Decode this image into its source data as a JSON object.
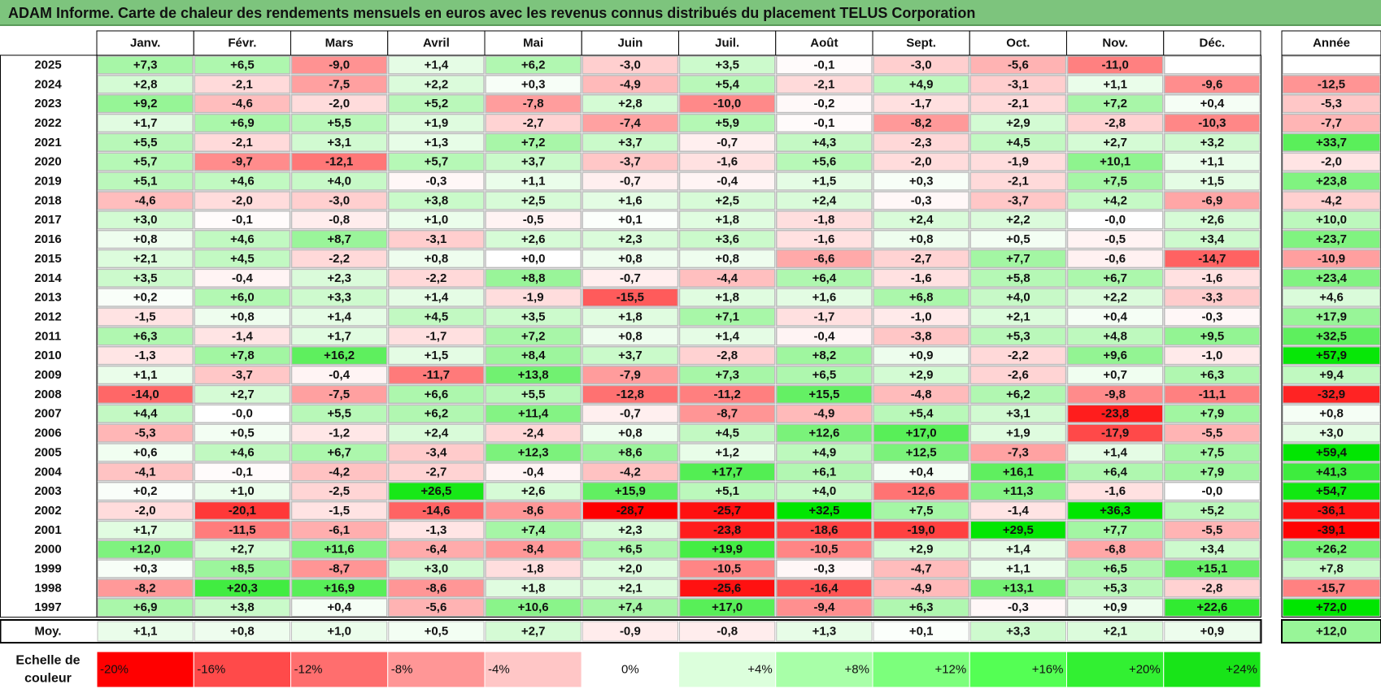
{
  "title": "ADAM Informe. Carte de chaleur des rendements mensuels en euros avec les revenus connus distribués du placement TELUS Corporation",
  "chart_data": {
    "type": "heatmap",
    "title": "ADAM Informe. Carte de chaleur des rendements mensuels en euros avec les revenus connus distribués du placement TELUS Corporation",
    "columns": [
      "Janv.",
      "Févr.",
      "Mars",
      "Avril",
      "Mai",
      "Juin",
      "Juil.",
      "Août",
      "Sept.",
      "Oct.",
      "Nov.",
      "Déc."
    ],
    "year_column_label": "Année",
    "rows": [
      {
        "year": "2025",
        "months": [
          "+7,3",
          "+6,5",
          "-9,0",
          "+1,4",
          "+6,2",
          "-3,0",
          "+3,5",
          "-0,1",
          "-3,0",
          "-5,6",
          "-11,0",
          ""
        ],
        "annual": ""
      },
      {
        "year": "2024",
        "months": [
          "+2,8",
          "-2,1",
          "-7,5",
          "+2,2",
          "+0,3",
          "-4,9",
          "+5,4",
          "-2,1",
          "+4,9",
          "-3,1",
          "+1,1",
          "-9,6"
        ],
        "annual": "-12,5"
      },
      {
        "year": "2023",
        "months": [
          "+9,2",
          "-4,6",
          "-2,0",
          "+5,2",
          "-7,8",
          "+2,8",
          "-10,0",
          "-0,2",
          "-1,7",
          "-2,1",
          "+7,2",
          "+0,4"
        ],
        "annual": "-5,3"
      },
      {
        "year": "2022",
        "months": [
          "+1,7",
          "+6,9",
          "+5,5",
          "+1,9",
          "-2,7",
          "-7,4",
          "+5,9",
          "-0,1",
          "-8,2",
          "+2,9",
          "-2,8",
          "-10,3"
        ],
        "annual": "-7,7"
      },
      {
        "year": "2021",
        "months": [
          "+5,5",
          "-2,1",
          "+3,1",
          "+1,3",
          "+7,2",
          "+3,7",
          "-0,7",
          "+4,3",
          "-2,3",
          "+4,5",
          "+2,7",
          "+3,2"
        ],
        "annual": "+33,7"
      },
      {
        "year": "2020",
        "months": [
          "+5,7",
          "-9,7",
          "-12,1",
          "+5,7",
          "+3,7",
          "-3,7",
          "-1,6",
          "+5,6",
          "-2,0",
          "-1,9",
          "+10,1",
          "+1,1"
        ],
        "annual": "-2,0"
      },
      {
        "year": "2019",
        "months": [
          "+5,1",
          "+4,6",
          "+4,0",
          "-0,3",
          "+1,1",
          "-0,7",
          "-0,4",
          "+1,5",
          "+0,3",
          "-2,1",
          "+7,5",
          "+1,5"
        ],
        "annual": "+23,8"
      },
      {
        "year": "2018",
        "months": [
          "-4,6",
          "-2,0",
          "-3,0",
          "+3,8",
          "+2,5",
          "+1,6",
          "+2,5",
          "+2,4",
          "-0,3",
          "-3,7",
          "+4,2",
          "-6,9"
        ],
        "annual": "-4,2"
      },
      {
        "year": "2017",
        "months": [
          "+3,0",
          "-0,1",
          "-0,8",
          "+1,0",
          "-0,5",
          "+0,1",
          "+1,8",
          "-1,8",
          "+2,4",
          "+2,2",
          "-0,0",
          "+2,6"
        ],
        "annual": "+10,0"
      },
      {
        "year": "2016",
        "months": [
          "+0,8",
          "+4,6",
          "+8,7",
          "-3,1",
          "+2,6",
          "+2,3",
          "+3,6",
          "-1,6",
          "+0,8",
          "+0,5",
          "-0,5",
          "+3,4"
        ],
        "annual": "+23,7"
      },
      {
        "year": "2015",
        "months": [
          "+2,1",
          "+4,5",
          "-2,2",
          "+0,8",
          "+0,0",
          "+0,8",
          "+0,8",
          "-6,6",
          "-2,7",
          "+7,7",
          "-0,6",
          "-14,7"
        ],
        "annual": "-10,9"
      },
      {
        "year": "2014",
        "months": [
          "+3,5",
          "-0,4",
          "+2,3",
          "-2,2",
          "+8,8",
          "-0,7",
          "-4,4",
          "+6,4",
          "-1,6",
          "+5,8",
          "+6,7",
          "-1,6"
        ],
        "annual": "+23,4"
      },
      {
        "year": "2013",
        "months": [
          "+0,2",
          "+6,0",
          "+3,3",
          "+1,4",
          "-1,9",
          "-15,5",
          "+1,8",
          "+1,6",
          "+6,8",
          "+4,0",
          "+2,2",
          "-3,3"
        ],
        "annual": "+4,6"
      },
      {
        "year": "2012",
        "months": [
          "-1,5",
          "+0,8",
          "+1,4",
          "+4,5",
          "+3,5",
          "+1,8",
          "+7,1",
          "-1,7",
          "-1,0",
          "+2,1",
          "+0,4",
          "-0,3"
        ],
        "annual": "+17,9"
      },
      {
        "year": "2011",
        "months": [
          "+6,3",
          "-1,4",
          "+1,7",
          "-1,7",
          "+7,2",
          "+0,8",
          "+1,4",
          "-0,4",
          "-3,8",
          "+5,3",
          "+4,8",
          "+9,5"
        ],
        "annual": "+32,5"
      },
      {
        "year": "2010",
        "months": [
          "-1,3",
          "+7,8",
          "+16,2",
          "+1,5",
          "+8,4",
          "+3,7",
          "-2,8",
          "+8,2",
          "+0,9",
          "-2,2",
          "+9,6",
          "-1,0"
        ],
        "annual": "+57,9"
      },
      {
        "year": "2009",
        "months": [
          "+1,1",
          "-3,7",
          "-0,4",
          "-11,7",
          "+13,8",
          "-7,9",
          "+7,3",
          "+6,5",
          "+2,9",
          "-2,6",
          "+0,7",
          "+6,3"
        ],
        "annual": "+9,4"
      },
      {
        "year": "2008",
        "months": [
          "-14,0",
          "+2,7",
          "-7,5",
          "+6,6",
          "+5,5",
          "-12,8",
          "-11,2",
          "+15,5",
          "-4,8",
          "+6,2",
          "-9,8",
          "-11,1"
        ],
        "annual": "-32,9"
      },
      {
        "year": "2007",
        "months": [
          "+4,4",
          "-0,0",
          "+5,5",
          "+6,2",
          "+11,4",
          "-0,7",
          "-8,7",
          "-4,9",
          "+5,4",
          "+3,1",
          "-23,8",
          "+7,9"
        ],
        "annual": "+0,8"
      },
      {
        "year": "2006",
        "months": [
          "-5,3",
          "+0,5",
          "-1,2",
          "+2,4",
          "-2,4",
          "+0,8",
          "+4,5",
          "+12,6",
          "+17,0",
          "+1,9",
          "-17,9",
          "-5,5"
        ],
        "annual": "+3,0"
      },
      {
        "year": "2005",
        "months": [
          "+0,6",
          "+4,6",
          "+6,7",
          "-3,4",
          "+12,3",
          "+8,6",
          "+1,2",
          "+4,9",
          "+12,5",
          "-7,3",
          "+1,4",
          "+7,5"
        ],
        "annual": "+59,4"
      },
      {
        "year": "2004",
        "months": [
          "-4,1",
          "-0,1",
          "-4,2",
          "-2,7",
          "-0,4",
          "-4,2",
          "+17,7",
          "+6,1",
          "+0,4",
          "+16,1",
          "+6,4",
          "+7,9"
        ],
        "annual": "+41,3"
      },
      {
        "year": "2003",
        "months": [
          "+0,2",
          "+1,0",
          "-2,5",
          "+26,5",
          "+2,6",
          "+15,9",
          "+5,1",
          "+4,0",
          "-12,6",
          "+11,3",
          "-1,6",
          "-0,0"
        ],
        "annual": "+54,7"
      },
      {
        "year": "2002",
        "months": [
          "-2,0",
          "-20,1",
          "-1,5",
          "-14,6",
          "-8,6",
          "-28,7",
          "-25,7",
          "+32,5",
          "+7,5",
          "-1,4",
          "+36,3",
          "+5,2"
        ],
        "annual": "-36,1"
      },
      {
        "year": "2001",
        "months": [
          "+1,7",
          "-11,5",
          "-6,1",
          "-1,3",
          "+7,4",
          "+2,3",
          "-23,8",
          "-18,6",
          "-19,0",
          "+29,5",
          "+7,7",
          "-5,5"
        ],
        "annual": "-39,1"
      },
      {
        "year": "2000",
        "months": [
          "+12,0",
          "+2,7",
          "+11,6",
          "-6,4",
          "-8,4",
          "+6,5",
          "+19,9",
          "-10,5",
          "+2,9",
          "+1,4",
          "-6,8",
          "+3,4"
        ],
        "annual": "+26,2"
      },
      {
        "year": "1999",
        "months": [
          "+0,3",
          "+8,5",
          "-8,7",
          "+3,0",
          "-1,8",
          "+2,0",
          "-10,5",
          "-0,3",
          "-4,7",
          "+1,1",
          "+6,5",
          "+15,1"
        ],
        "annual": "+7,8"
      },
      {
        "year": "1998",
        "months": [
          "-8,2",
          "+20,3",
          "+16,9",
          "-8,6",
          "+1,8",
          "+2,1",
          "-25,6",
          "-16,4",
          "-4,9",
          "+13,1",
          "+5,3",
          "-2,8"
        ],
        "annual": "-15,7"
      },
      {
        "year": "1997",
        "months": [
          "+6,9",
          "+3,8",
          "+0,4",
          "-5,6",
          "+10,6",
          "+7,4",
          "+17,0",
          "-9,4",
          "+6,3",
          "-0,3",
          "+0,9",
          "+22,6"
        ],
        "annual": "+72,0"
      }
    ],
    "average": {
      "label": "Moy.",
      "months": [
        "+1,1",
        "+0,8",
        "+1,0",
        "+0,5",
        "+2,7",
        "-0,9",
        "-0,8",
        "+1,3",
        "+0,1",
        "+3,3",
        "+2,1",
        "+0,9"
      ],
      "annual": "+12,0"
    },
    "color_scale": {
      "label": "Echelle de couleur",
      "stops": [
        "-20%",
        "-16%",
        "-12%",
        "-8%",
        "-4%",
        "0%",
        "+4%",
        "+8%",
        "+12%",
        "+16%",
        "+20%",
        "+24%"
      ],
      "values": [
        -20,
        -16,
        -12,
        -8,
        -4,
        0,
        4,
        8,
        12,
        16,
        20,
        24
      ],
      "colors": [
        "#ff0000",
        "#ff4a4a",
        "#ff6e6e",
        "#ff9696",
        "#ffc6c6",
        "#ffffff",
        "#dcffdc",
        "#a8ffa8",
        "#7cff7c",
        "#54ff54",
        "#32f032",
        "#18e418"
      ]
    },
    "colors": {
      "negative_max": "#ff0000",
      "neutral": "#ffffff",
      "positive_max": "#00e600",
      "title_bar": "#7dc47d"
    }
  }
}
